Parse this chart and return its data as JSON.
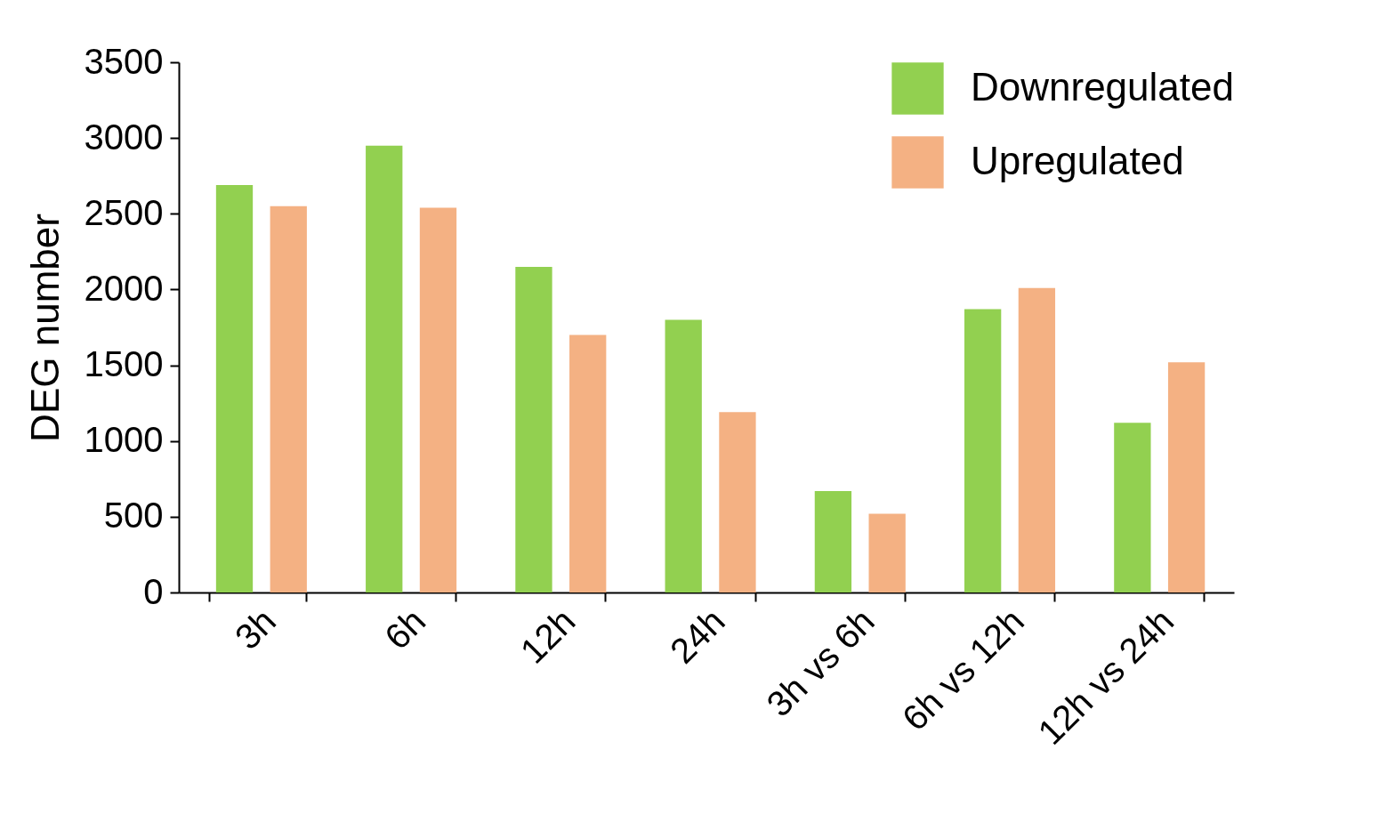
{
  "chart_data": {
    "type": "bar",
    "ylabel": "DEG number",
    "categories": [
      "3h",
      "6h",
      "12h",
      "24h",
      "3h vs 6h",
      "6h vs 12h",
      "12h vs 24h"
    ],
    "series": [
      {
        "name": "Downregulated",
        "color": "#92d050",
        "values": [
          2690,
          2950,
          2150,
          1800,
          670,
          1870,
          1120
        ]
      },
      {
        "name": "Upregulated",
        "color": "#f4b183",
        "values": [
          2550,
          2540,
          1700,
          1190,
          520,
          2010,
          1520
        ]
      }
    ],
    "ylim": [
      0,
      3500
    ],
    "yticks": [
      0,
      500,
      1000,
      1500,
      2000,
      2500,
      3000,
      3500
    ],
    "grid": false,
    "legend": "top right"
  }
}
